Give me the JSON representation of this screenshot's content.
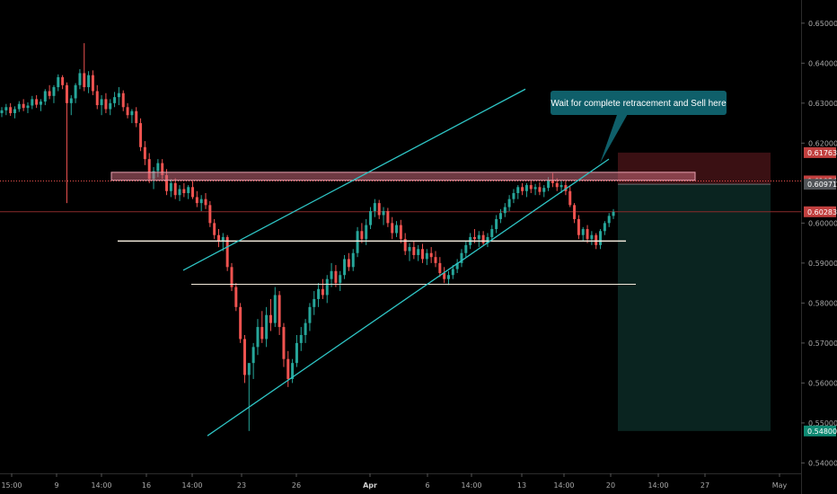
{
  "chart_data": {
    "type": "candlestick",
    "annotation": "Wait for complete retracement and Sell here",
    "y_axis": {
      "range": [
        0.5374,
        0.6558
      ],
      "ticks": [
        "0.65000",
        "0.64000",
        "0.63000",
        "0.62000",
        "0.60000",
        "0.59000",
        "0.58000",
        "0.57000",
        "0.56000",
        "0.55000",
        "0.54000"
      ]
    },
    "x_axis": {
      "ticks": [
        {
          "label": "15:00",
          "bold": false
        },
        {
          "label": "9",
          "bold": false
        },
        {
          "label": "14:00",
          "bold": false
        },
        {
          "label": "16",
          "bold": false
        },
        {
          "label": "14:00",
          "bold": false
        },
        {
          "label": "23",
          "bold": false
        },
        {
          "label": "26",
          "bold": false
        },
        {
          "label": "Apr",
          "bold": true
        },
        {
          "label": "6",
          "bold": false
        },
        {
          "label": "14:00",
          "bold": false
        },
        {
          "label": "13",
          "bold": false
        },
        {
          "label": "14:00",
          "bold": false
        },
        {
          "label": "20",
          "bold": false
        },
        {
          "label": "14:00",
          "bold": false
        },
        {
          "label": "27",
          "bold": false
        },
        {
          "label": "May",
          "bold": false
        }
      ]
    },
    "price_tags": [
      {
        "label": "0.61763",
        "bg": "#c2403f",
        "fg": "#ffffff"
      },
      {
        "label": "0.61054",
        "bg": "#c2403f",
        "fg": "#ffffff"
      },
      {
        "label": "0.60971",
        "bg": "#505357",
        "fg": "#ffffff"
      },
      {
        "label": "0.60283",
        "bg": "#c2403f",
        "fg": "#ffffff"
      },
      {
        "label": "0.54800",
        "bg": "#0f8a73",
        "fg": "#ffffff"
      }
    ],
    "levels": {
      "entry": 0.60971,
      "stop": 0.61763,
      "target": 0.548,
      "last": 0.60283,
      "marker": 0.61054,
      "resistance_zone": [
        0.6107,
        0.6127
      ],
      "support_1": 0.5955,
      "support_2": 0.5847
    },
    "colors": {
      "background": "#000000",
      "up_candle": "#26a69a",
      "down_candle": "#ef5350",
      "channel": "#2ec4c4",
      "support": "#f3eadc",
      "zone": "#c8697a",
      "stop_box": "#3a1013",
      "target_box": "#0a2420",
      "callout": "#0f5f6a"
    },
    "candles": [
      [
        0.6275,
        0.629,
        0.6265,
        0.6282
      ],
      [
        0.6282,
        0.6298,
        0.627,
        0.629
      ],
      [
        0.629,
        0.63,
        0.6268,
        0.6275
      ],
      [
        0.6275,
        0.6292,
        0.6262,
        0.6285
      ],
      [
        0.6285,
        0.6305,
        0.6278,
        0.6298
      ],
      [
        0.6298,
        0.631,
        0.628,
        0.6288
      ],
      [
        0.6288,
        0.6302,
        0.6275,
        0.6294
      ],
      [
        0.6294,
        0.6318,
        0.6285,
        0.631
      ],
      [
        0.631,
        0.632,
        0.6288,
        0.6296
      ],
      [
        0.6296,
        0.631,
        0.628,
        0.6304
      ],
      [
        0.6304,
        0.6335,
        0.6295,
        0.633
      ],
      [
        0.633,
        0.6345,
        0.631,
        0.6318
      ],
      [
        0.6318,
        0.6345,
        0.63,
        0.634
      ],
      [
        0.634,
        0.6372,
        0.633,
        0.6365
      ],
      [
        0.6365,
        0.637,
        0.6335,
        0.6345
      ],
      [
        0.6345,
        0.6352,
        0.605,
        0.63
      ],
      [
        0.63,
        0.632,
        0.627,
        0.6312
      ],
      [
        0.6312,
        0.635,
        0.63,
        0.6345
      ],
      [
        0.6345,
        0.6385,
        0.6335,
        0.6375
      ],
      [
        0.6375,
        0.645,
        0.633,
        0.634
      ],
      [
        0.634,
        0.638,
        0.6325,
        0.637
      ],
      [
        0.637,
        0.6382,
        0.632,
        0.633
      ],
      [
        0.633,
        0.6345,
        0.6285,
        0.6295
      ],
      [
        0.6295,
        0.632,
        0.627,
        0.631
      ],
      [
        0.631,
        0.6325,
        0.6275,
        0.6285
      ],
      [
        0.6285,
        0.631,
        0.627,
        0.63
      ],
      [
        0.63,
        0.6328,
        0.629,
        0.6315
      ],
      [
        0.6315,
        0.634,
        0.6295,
        0.6325
      ],
      [
        0.6325,
        0.6332,
        0.628,
        0.629
      ],
      [
        0.629,
        0.63,
        0.6262,
        0.627
      ],
      [
        0.627,
        0.6285,
        0.625,
        0.628
      ],
      [
        0.628,
        0.629,
        0.624,
        0.625
      ],
      [
        0.625,
        0.6262,
        0.618,
        0.619
      ],
      [
        0.619,
        0.6205,
        0.6145,
        0.616
      ],
      [
        0.616,
        0.6175,
        0.61,
        0.611
      ],
      [
        0.611,
        0.614,
        0.6085,
        0.613
      ],
      [
        0.613,
        0.616,
        0.6115,
        0.615
      ],
      [
        0.615,
        0.616,
        0.611,
        0.612
      ],
      [
        0.612,
        0.6135,
        0.607,
        0.608
      ],
      [
        0.608,
        0.611,
        0.6065,
        0.61
      ],
      [
        0.61,
        0.6112,
        0.606,
        0.607
      ],
      [
        0.607,
        0.6095,
        0.6055,
        0.6085
      ],
      [
        0.6085,
        0.61,
        0.6065,
        0.6075
      ],
      [
        0.6075,
        0.6095,
        0.606,
        0.609
      ],
      [
        0.609,
        0.6105,
        0.606,
        0.6065
      ],
      [
        0.6065,
        0.608,
        0.604,
        0.605
      ],
      [
        0.605,
        0.607,
        0.603,
        0.606
      ],
      [
        0.606,
        0.6075,
        0.6035,
        0.6045
      ],
      [
        0.6045,
        0.6055,
        0.599,
        0.6
      ],
      [
        0.6,
        0.601,
        0.596,
        0.597
      ],
      [
        0.597,
        0.5985,
        0.594,
        0.5955
      ],
      [
        0.5955,
        0.5975,
        0.593,
        0.5965
      ],
      [
        0.5965,
        0.597,
        0.588,
        0.589
      ],
      [
        0.589,
        0.59,
        0.583,
        0.584
      ],
      [
        0.584,
        0.585,
        0.578,
        0.579
      ],
      [
        0.579,
        0.58,
        0.57,
        0.571
      ],
      [
        0.571,
        0.572,
        0.56,
        0.562
      ],
      [
        0.562,
        0.564,
        0.548,
        0.565
      ],
      [
        0.565,
        0.57,
        0.561,
        0.569
      ],
      [
        0.569,
        0.576,
        0.567,
        0.574
      ],
      [
        0.574,
        0.578,
        0.57,
        0.571
      ],
      [
        0.571,
        0.579,
        0.569,
        0.577
      ],
      [
        0.577,
        0.581,
        0.573,
        0.575
      ],
      [
        0.575,
        0.584,
        0.574,
        0.582
      ],
      [
        0.582,
        0.583,
        0.572,
        0.574
      ],
      [
        0.574,
        0.575,
        0.564,
        0.566
      ],
      [
        0.566,
        0.568,
        0.559,
        0.561
      ],
      [
        0.561,
        0.566,
        0.56,
        0.565
      ],
      [
        0.565,
        0.572,
        0.564,
        0.57
      ],
      [
        0.57,
        0.574,
        0.568,
        0.572
      ],
      [
        0.572,
        0.576,
        0.57,
        0.575
      ],
      [
        0.575,
        0.58,
        0.573,
        0.579
      ],
      [
        0.579,
        0.583,
        0.577,
        0.581
      ],
      [
        0.581,
        0.585,
        0.579,
        0.5835
      ],
      [
        0.5835,
        0.586,
        0.581,
        0.582
      ],
      [
        0.582,
        0.587,
        0.58,
        0.586
      ],
      [
        0.586,
        0.59,
        0.584,
        0.588
      ],
      [
        0.588,
        0.5895,
        0.584,
        0.585
      ],
      [
        0.585,
        0.588,
        0.583,
        0.587
      ],
      [
        0.587,
        0.592,
        0.586,
        0.591
      ],
      [
        0.591,
        0.5925,
        0.588,
        0.589
      ],
      [
        0.589,
        0.5935,
        0.588,
        0.5925
      ],
      [
        0.5925,
        0.599,
        0.5915,
        0.598
      ],
      [
        0.598,
        0.6,
        0.595,
        0.596
      ],
      [
        0.596,
        0.601,
        0.5945,
        0.5995
      ],
      [
        0.5995,
        0.604,
        0.5985,
        0.603
      ],
      [
        0.603,
        0.606,
        0.6015,
        0.605
      ],
      [
        0.605,
        0.6058,
        0.601,
        0.602
      ],
      [
        0.602,
        0.604,
        0.5995,
        0.603
      ],
      [
        0.603,
        0.6038,
        0.599,
        0.6
      ],
      [
        0.6,
        0.6015,
        0.596,
        0.5975
      ],
      [
        0.5975,
        0.6005,
        0.5965,
        0.5995
      ],
      [
        0.5995,
        0.6008,
        0.595,
        0.596
      ],
      [
        0.596,
        0.5975,
        0.592,
        0.593
      ],
      [
        0.593,
        0.595,
        0.5905,
        0.594
      ],
      [
        0.594,
        0.5955,
        0.591,
        0.592
      ],
      [
        0.592,
        0.5945,
        0.5905,
        0.5935
      ],
      [
        0.5935,
        0.5948,
        0.59,
        0.591
      ],
      [
        0.591,
        0.5935,
        0.5895,
        0.5925
      ],
      [
        0.5925,
        0.594,
        0.59,
        0.5915
      ],
      [
        0.5915,
        0.593,
        0.589,
        0.59
      ],
      [
        0.59,
        0.5915,
        0.5865,
        0.5875
      ],
      [
        0.5875,
        0.589,
        0.585,
        0.586
      ],
      [
        0.586,
        0.588,
        0.5845,
        0.587
      ],
      [
        0.587,
        0.5895,
        0.586,
        0.5885
      ],
      [
        0.5885,
        0.591,
        0.5875,
        0.59
      ],
      [
        0.59,
        0.5935,
        0.589,
        0.5925
      ],
      [
        0.5925,
        0.5955,
        0.5915,
        0.5945
      ],
      [
        0.5945,
        0.5975,
        0.5935,
        0.5965
      ],
      [
        0.5965,
        0.5985,
        0.595,
        0.596
      ],
      [
        0.596,
        0.598,
        0.594,
        0.597
      ],
      [
        0.597,
        0.598,
        0.5945,
        0.595
      ],
      [
        0.595,
        0.5975,
        0.594,
        0.5965
      ],
      [
        0.5965,
        0.5995,
        0.5955,
        0.5985
      ],
      [
        0.5985,
        0.602,
        0.5975,
        0.601
      ],
      [
        0.601,
        0.6035,
        0.6,
        0.6025
      ],
      [
        0.6025,
        0.605,
        0.6015,
        0.604
      ],
      [
        0.604,
        0.607,
        0.603,
        0.606
      ],
      [
        0.606,
        0.6085,
        0.605,
        0.6075
      ],
      [
        0.6075,
        0.6095,
        0.606,
        0.609
      ],
      [
        0.609,
        0.61,
        0.607,
        0.608
      ],
      [
        0.608,
        0.61,
        0.6065,
        0.6095
      ],
      [
        0.6095,
        0.6105,
        0.6075,
        0.6085
      ],
      [
        0.6085,
        0.6098,
        0.607,
        0.609
      ],
      [
        0.609,
        0.6102,
        0.607,
        0.6078
      ],
      [
        0.6078,
        0.6095,
        0.6065,
        0.6088
      ],
      [
        0.6088,
        0.6115,
        0.608,
        0.6108
      ],
      [
        0.6108,
        0.6125,
        0.609,
        0.61
      ],
      [
        0.61,
        0.6112,
        0.608,
        0.609
      ],
      [
        0.609,
        0.6105,
        0.6075,
        0.6095
      ],
      [
        0.6095,
        0.6105,
        0.607,
        0.608
      ],
      [
        0.608,
        0.6092,
        0.604,
        0.6045
      ],
      [
        0.6045,
        0.605,
        0.6,
        0.601
      ],
      [
        0.601,
        0.602,
        0.596,
        0.597
      ],
      [
        0.597,
        0.599,
        0.5955,
        0.5985
      ],
      [
        0.5985,
        0.5995,
        0.595,
        0.596
      ],
      [
        0.596,
        0.598,
        0.5945,
        0.597
      ],
      [
        0.597,
        0.5975,
        0.5935,
        0.5945
      ],
      [
        0.5945,
        0.5985,
        0.5935,
        0.598
      ],
      [
        0.598,
        0.6005,
        0.597,
        0.6
      ],
      [
        0.6,
        0.6025,
        0.599,
        0.6018
      ],
      [
        0.6018,
        0.6035,
        0.601,
        0.6028
      ]
    ]
  }
}
